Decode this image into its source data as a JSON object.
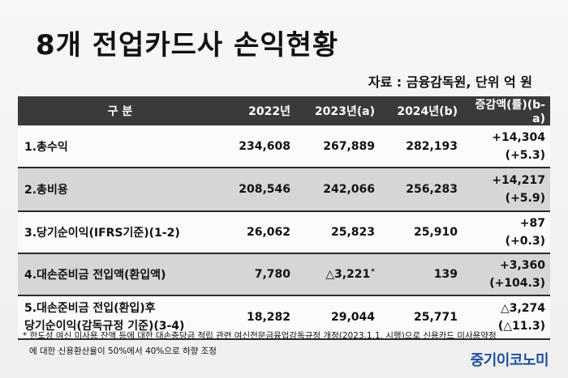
{
  "title": "8개 전업카드사 손익현황",
  "source": "자료 : 금융감독원, 단위 억 원",
  "table": {
    "headers": [
      "구 분",
      "2022년",
      "2023년(a)",
      "2024년(b)",
      "증감액(률)(b-a)"
    ],
    "rows": [
      {
        "label": "1.총수익",
        "v2022": "234,608",
        "v2023": "267,889",
        "v2024": "282,193",
        "diff": "+14,304",
        "rate": "(+5.3)"
      },
      {
        "label": "2.총비용",
        "v2022": "208,546",
        "v2023": "242,066",
        "v2024": "256,283",
        "diff": "+14,217",
        "rate": "(+5.9)"
      },
      {
        "label": "3.당기순이익(IFRS기준)(1-2)",
        "v2022": "26,062",
        "v2023": "25,823",
        "v2024": "25,910",
        "diff": "+87",
        "rate": "(+0.3)"
      },
      {
        "label": "4.대손준비금 전입액(환입액)",
        "v2022": "7,780",
        "v2023": "△3,221",
        "v2023_mark": "*",
        "v2024": "139",
        "diff": "+3,360",
        "rate": "(+104.3)"
      },
      {
        "label_line1": "5.대손준비금 전입(환입)후",
        "label_line2": "당기순이익(감독규정 기준)(3-4)",
        "v2022": "18,282",
        "v2023": "29,044",
        "v2024": "25,771",
        "diff": "△3,274",
        "rate": "(△11.3)"
      }
    ]
  },
  "footnote": {
    "line1": "* 한도성 여신 미사용 잔액 등에 대한 대손충당금 적립 관련 여신전문금융업감독규정 개정(2023.1.1. 시행)으로 신용카드 미사용약정",
    "line2": "에 대한 신용환산율이 50%에서 40%으로 하향 조정"
  },
  "logo": "중기이코노미",
  "colors": {
    "header_bg": "#3a3a3a",
    "shade_row": "#d6d6d6",
    "logo": "#1f4e9c"
  }
}
